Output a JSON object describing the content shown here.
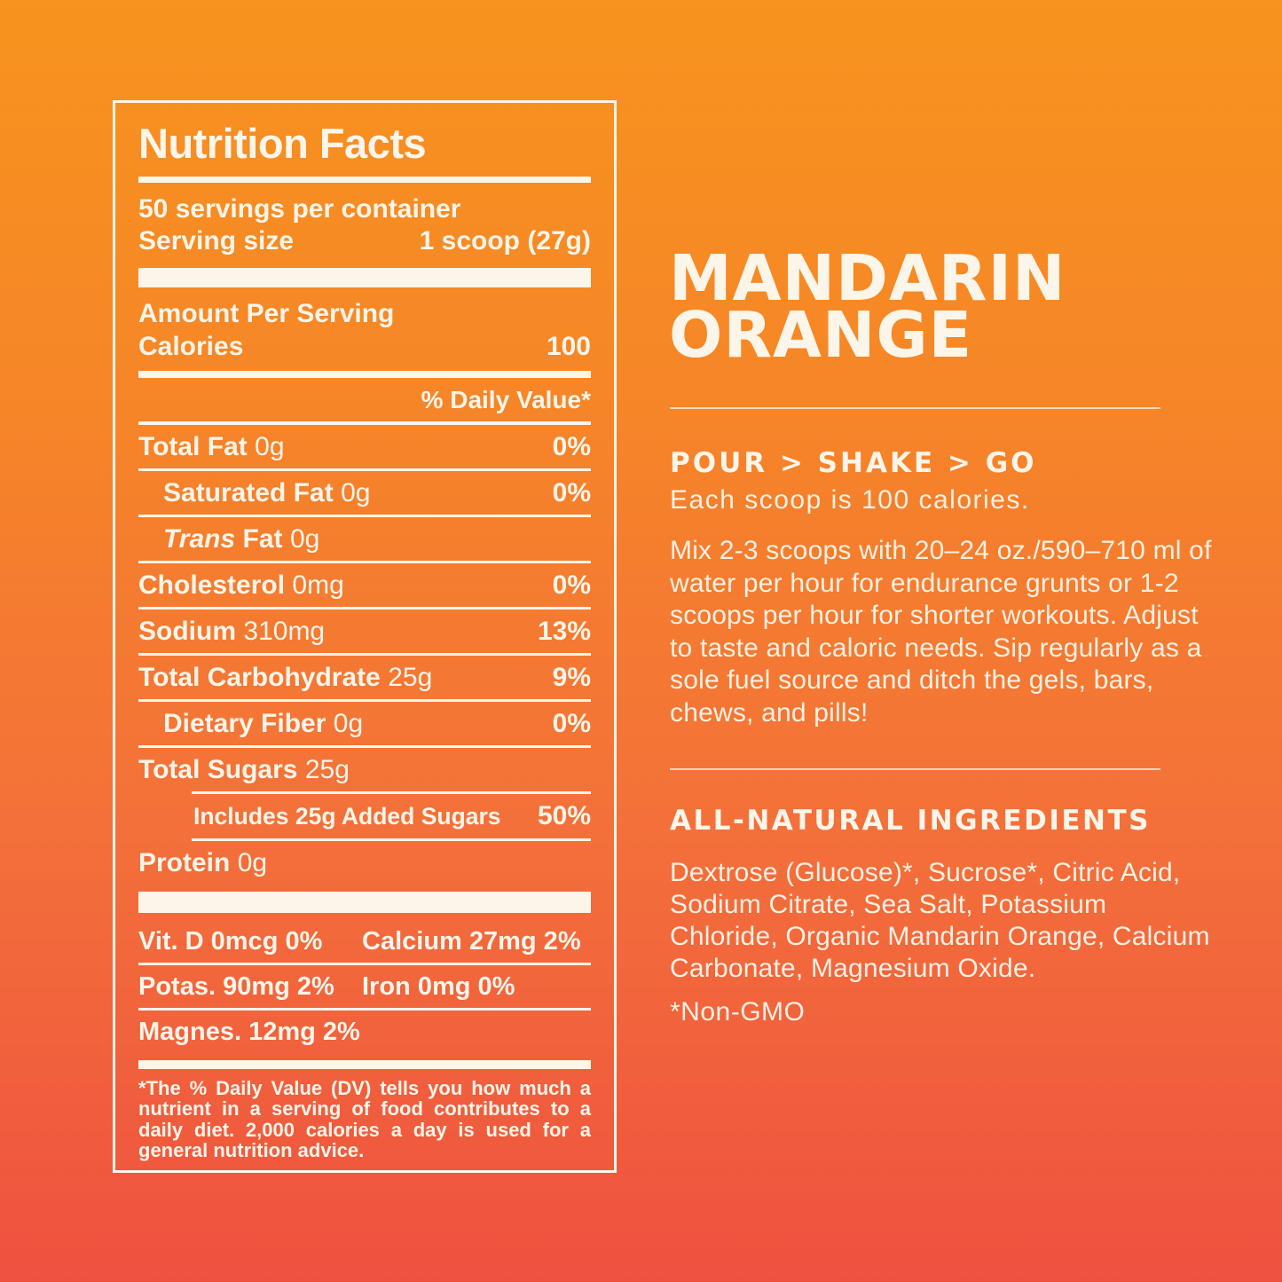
{
  "background": {
    "gradient_top": "#F7931E",
    "gradient_bottom": "#EF5140",
    "text_color": "#FCF5E9"
  },
  "nutrition_panel": {
    "title": "Nutrition Facts",
    "servings_per_container": "50 servings per container",
    "serving_size_label": "Serving size",
    "serving_size_value": "1 scoop (27g)",
    "amount_per_serving": "Amount Per Serving",
    "calories_label": "Calories",
    "calories_value": "100",
    "daily_value_header": "% Daily Value*",
    "rows": [
      {
        "name": "Total Fat",
        "amount": "0g",
        "dv": "0%"
      },
      {
        "name": "Saturated Fat",
        "amount": "0g",
        "dv": "0%"
      },
      {
        "name_italic": "Trans",
        "name": "Fat",
        "amount": "0g",
        "dv": ""
      },
      {
        "name": "Cholesterol",
        "amount": "0mg",
        "dv": "0%"
      },
      {
        "name": "Sodium",
        "amount": "310mg",
        "dv": "13%"
      },
      {
        "name": "Total Carbohydrate",
        "amount": "25g",
        "dv": "9%"
      },
      {
        "name": "Dietary Fiber",
        "amount": "0g",
        "dv": "0%"
      },
      {
        "name": "Total Sugars",
        "amount": "25g",
        "dv": ""
      },
      {
        "name": "Includes 25g Added Sugars",
        "amount": "",
        "dv": "50%"
      },
      {
        "name": "Protein",
        "amount": "0g",
        "dv": ""
      }
    ],
    "micronutrients": [
      [
        "Vit. D 0mcg 0%",
        "Calcium 27mg 2%"
      ],
      [
        "Potas. 90mg 2%",
        "Iron 0mg 0%"
      ],
      [
        "Magnes. 12mg 2%",
        ""
      ]
    ],
    "footnote": "*The % Daily Value (DV) tells you how much a nutrient in a serving of food contributes to a daily diet. 2,000 calories a day is used for a general nutrition advice."
  },
  "right_column": {
    "flavor_line1": "MANDARIN",
    "flavor_line2": "ORANGE",
    "usage_heading": "POUR > SHAKE > GO",
    "usage_subheading": "Each scoop is 100 calories.",
    "usage_paragraph": "Mix 2-3 scoops with 20–24 oz./590–710 ml of water per hour for endurance grunts or 1-2 scoops per hour for shorter workouts. Adjust to taste and caloric needs. Sip regularly as a sole fuel source and ditch the gels, bars, chews, and pills!",
    "ingredients_heading": "ALL-NATURAL INGREDIENTS",
    "ingredients_paragraph": "Dextrose (Glucose)*, Sucrose*, Citric Acid, Sodium Citrate, Sea Salt, Potassium Chloride, Organic Mandarin Orange, Calcium Carbonate, Magnesium Oxide.",
    "non_gmo_note": "*Non-GMO"
  }
}
